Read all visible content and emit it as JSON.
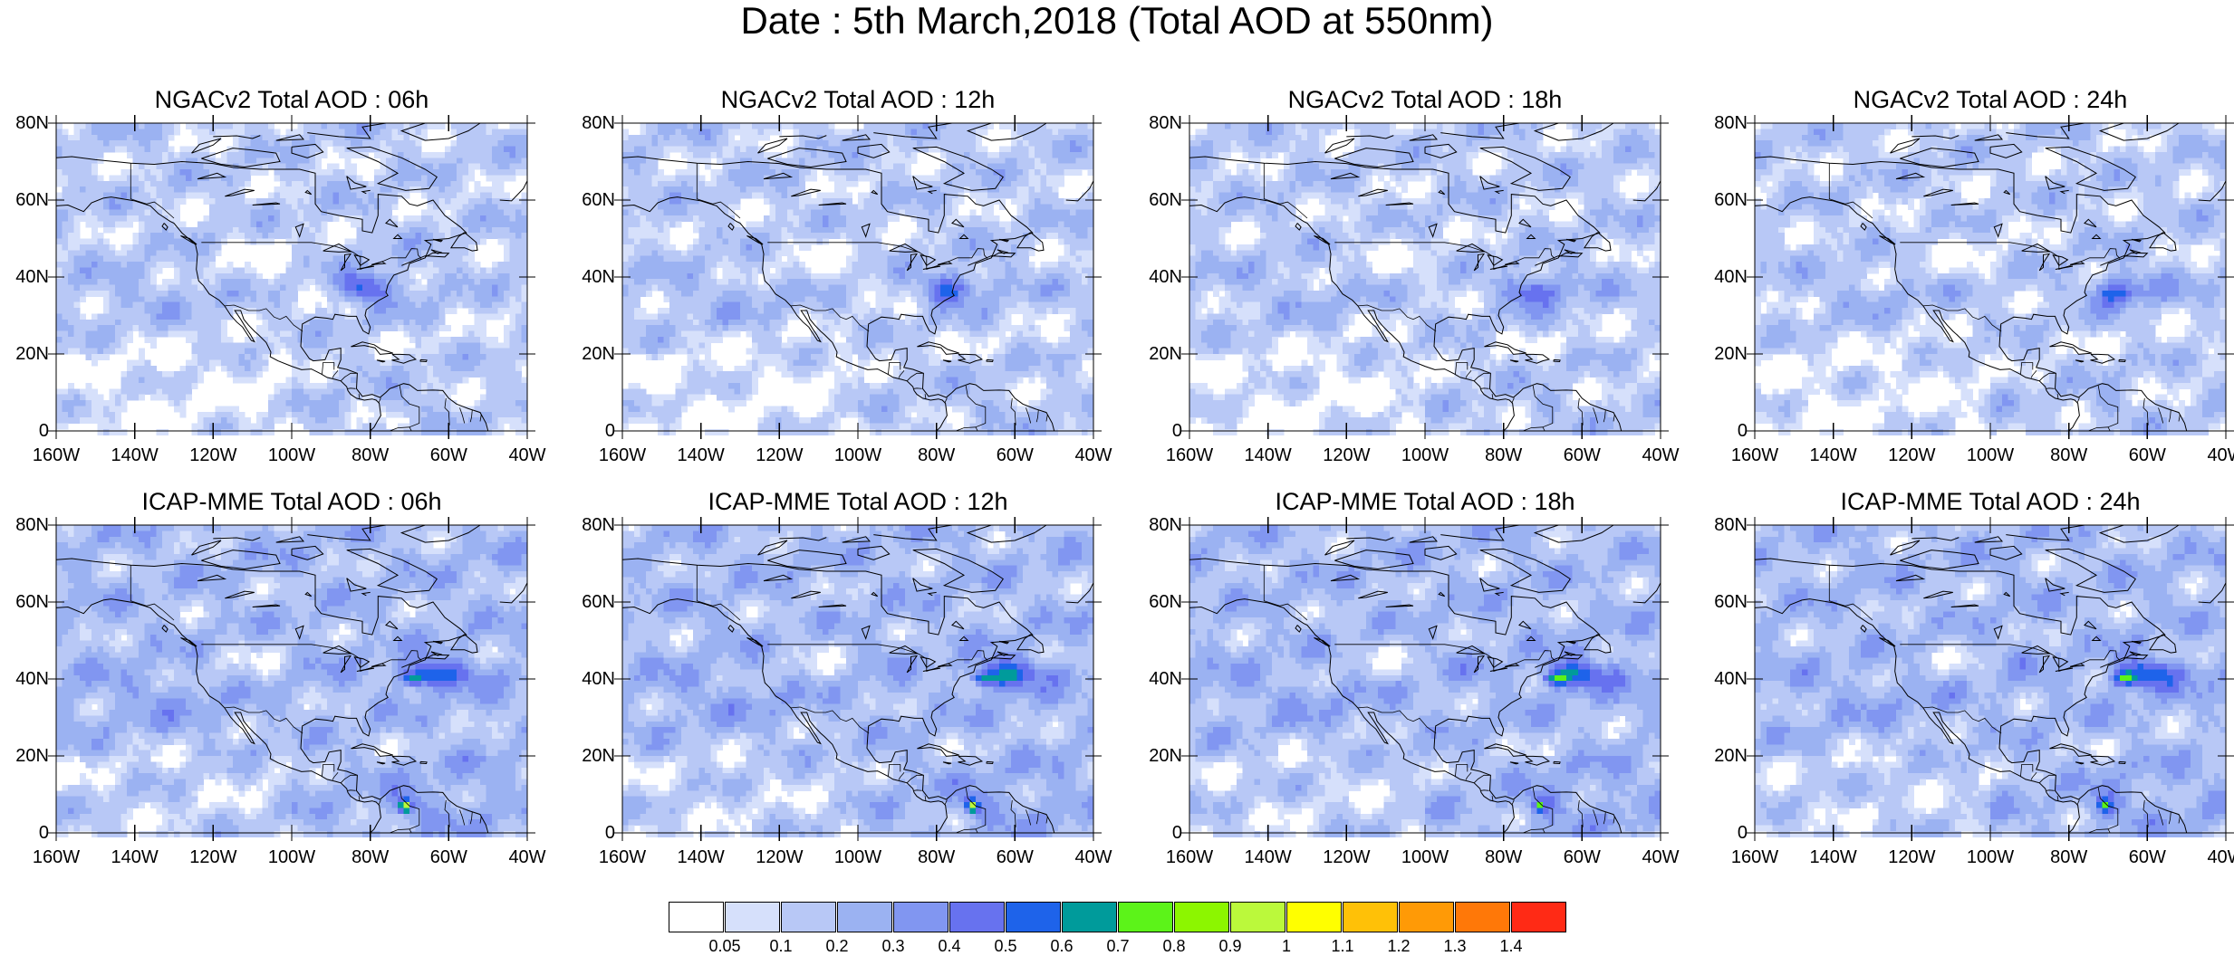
{
  "title": "Date : 5th March,2018 (Total AOD at 550nm)",
  "lat_labels": [
    "80N",
    "60N",
    "40N",
    "20N",
    "0"
  ],
  "lon_labels": [
    "160W",
    "140W",
    "120W",
    "100W",
    "80W",
    "60W",
    "40W"
  ],
  "map_extent": {
    "lon_min": -160,
    "lon_max": -40,
    "lat_min": 0,
    "lat_max": 80
  },
  "panels": [
    {
      "title": "NGACv2 Total AOD : 06h",
      "model": "NGACv2",
      "hour": "06h"
    },
    {
      "title": "NGACv2 Total AOD : 12h",
      "model": "NGACv2",
      "hour": "12h"
    },
    {
      "title": "NGACv2 Total AOD : 18h",
      "model": "NGACv2",
      "hour": "18h"
    },
    {
      "title": "NGACv2 Total AOD : 24h",
      "model": "NGACv2",
      "hour": "24h"
    },
    {
      "title": "ICAP-MME Total AOD : 06h",
      "model": "ICAP-MME",
      "hour": "06h"
    },
    {
      "title": "ICAP-MME Total AOD : 12h",
      "model": "ICAP-MME",
      "hour": "12h"
    },
    {
      "title": "ICAP-MME Total AOD : 18h",
      "model": "ICAP-MME",
      "hour": "18h"
    },
    {
      "title": "ICAP-MME Total AOD : 24h",
      "model": "ICAP-MME",
      "hour": "24h"
    }
  ],
  "colorbar": {
    "colors": [
      "#ffffff",
      "#d6e0fb",
      "#b8c8f6",
      "#9bb2f2",
      "#8196f1",
      "#6772ef",
      "#1e63ea",
      "#009b9b",
      "#5cf319",
      "#8cf600",
      "#bbf93b",
      "#ffff00",
      "#ffc107",
      "#ff9a06",
      "#ff7808",
      "#ff2a15"
    ],
    "labels": [
      "0.05",
      "0.1",
      "0.2",
      "0.3",
      "0.4",
      "0.5",
      "0.6",
      "0.7",
      "0.8",
      "0.9",
      "1",
      "1.1",
      "1.2",
      "1.3",
      "1.4"
    ]
  }
}
